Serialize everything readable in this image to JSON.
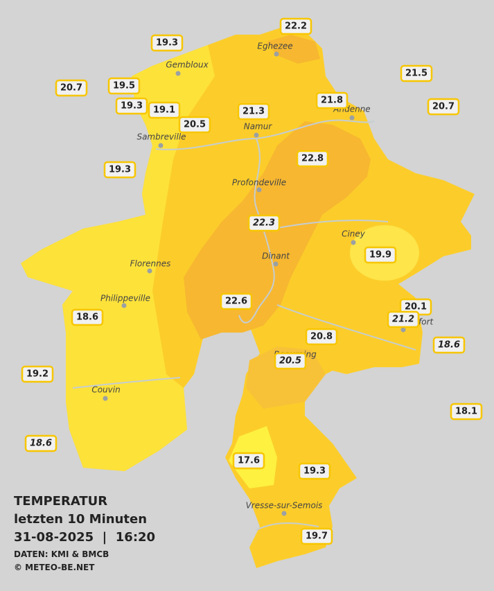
{
  "legend": {
    "title": "TEMPERATUR",
    "subtitle": "letzten 10 Minuten",
    "datetime": "31-08-2025  |  16:20",
    "source": "DATEN: KMI & BMCB",
    "copyright": "© METEO-BE.NET"
  },
  "cities": [
    "Eghezee",
    "Gembloux",
    "Andenne",
    "Namur",
    "Sambreville",
    "Profondeville",
    "Ciney",
    "Florennes",
    "Dinant",
    "Philippeville",
    "Rochefort",
    "Beauraing",
    "Couvin",
    "Vresse-sur-Semois"
  ],
  "stations": [
    22.2,
    19.3,
    21.5,
    20.7,
    19.5,
    20.7,
    19.3,
    19.1,
    21.3,
    21.8,
    20.5,
    22.8,
    19.3,
    22.3,
    19.9,
    22.6,
    20.1,
    21.2,
    18.6,
    18.6,
    20.8,
    20.5,
    19.2,
    18.1,
    18.6,
    17.6,
    19.3,
    19.7
  ]
}
